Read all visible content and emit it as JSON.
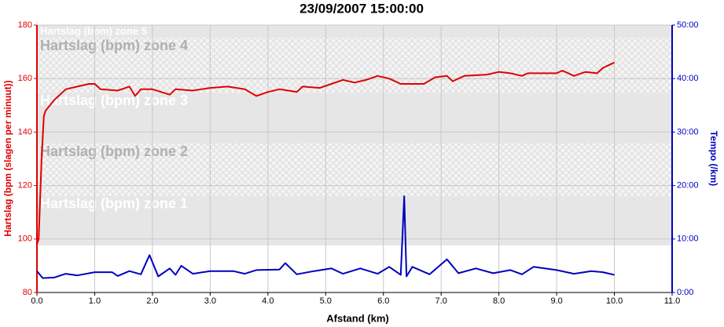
{
  "chart_data": {
    "type": "line",
    "title": "23/09/2007 15:00:00",
    "x_label": "Afstand (km)",
    "y_label": "Hartslag (bpm (slagen per minuut))",
    "y2_label": "Tempo (/km)",
    "xlim": [
      0,
      11
    ],
    "xticks": [
      {
        "value": 0,
        "label": "0.0"
      },
      {
        "value": 1,
        "label": "1.0"
      },
      {
        "value": 2,
        "label": "2.0"
      },
      {
        "value": 3,
        "label": "3.0"
      },
      {
        "value": 4,
        "label": "4.0"
      },
      {
        "value": 5,
        "label": "5.0"
      },
      {
        "value": 6,
        "label": "6.0"
      },
      {
        "value": 7,
        "label": "7.0"
      },
      {
        "value": 8,
        "label": "8.0"
      },
      {
        "value": 9,
        "label": "9.0"
      },
      {
        "value": 10,
        "label": "10.0"
      },
      {
        "value": 11,
        "label": "11.0"
      }
    ],
    "ylim": [
      80,
      180
    ],
    "yticks": [
      80,
      100,
      120,
      140,
      160,
      180
    ],
    "y2lim": [
      0,
      50
    ],
    "y2ticks": [
      {
        "value": 0,
        "label": "0:00"
      },
      {
        "value": 10,
        "label": "10:00"
      },
      {
        "value": 20,
        "label": "20:00"
      },
      {
        "value": 30,
        "label": "30:00"
      },
      {
        "value": 40,
        "label": "40:00"
      },
      {
        "value": 50,
        "label": "50:00"
      }
    ],
    "grid": true,
    "zones": [
      {
        "label": "Hartslag (bpm) zone 1",
        "range": [
          97.6,
          116.1
        ]
      },
      {
        "label": "Hartslag (bpm) zone 2",
        "range": [
          116.1,
          135.7
        ]
      },
      {
        "label": "Hartslag (bpm) zone 3",
        "range": [
          135.7,
          154.7
        ]
      },
      {
        "label": "Hartslag (bpm) zone 4",
        "range": [
          154.7,
          175.3
        ]
      },
      {
        "label": "Hartslag (bpm) zone 5",
        "range": [
          175.3,
          180
        ]
      }
    ],
    "series": [
      {
        "name": "Hartslag",
        "color": "#e00000",
        "x": [
          0,
          0.03,
          0.08,
          0.12,
          0.15,
          0.3,
          0.5,
          0.7,
          0.9,
          1.0,
          1.1,
          1.4,
          1.6,
          1.7,
          1.8,
          2.0,
          2.3,
          2.4,
          2.7,
          3.0,
          3.3,
          3.6,
          3.8,
          4.0,
          4.2,
          4.5,
          4.6,
          4.9,
          5.1,
          5.3,
          5.5,
          5.7,
          5.9,
          6.1,
          6.3,
          6.7,
          6.9,
          7.1,
          7.2,
          7.4,
          7.8,
          8.0,
          8.2,
          8.4,
          8.5,
          9.0,
          9.1,
          9.3,
          9.5,
          9.7,
          9.8,
          9.9,
          10.0
        ],
        "values": [
          98,
          100,
          130,
          146,
          148,
          152,
          156,
          157,
          158,
          158,
          156,
          155.5,
          157,
          153.5,
          156,
          156,
          154,
          156,
          155.5,
          156.5,
          157,
          156,
          153.5,
          155,
          156,
          155,
          157,
          156.5,
          158,
          159.5,
          158.5,
          159.5,
          161,
          160,
          158,
          158,
          160.5,
          161,
          159,
          161,
          161.5,
          162.5,
          162,
          161,
          162,
          162,
          163,
          161,
          162.5,
          162,
          164,
          165,
          166
        ]
      },
      {
        "name": "Tempo",
        "color": "#0000c0",
        "axis": "y2",
        "x": [
          0,
          0.1,
          0.3,
          0.5,
          0.7,
          1.0,
          1.3,
          1.4,
          1.6,
          1.8,
          1.95,
          2.1,
          2.3,
          2.4,
          2.5,
          2.7,
          3.0,
          3.4,
          3.6,
          3.8,
          4.2,
          4.3,
          4.5,
          4.8,
          5.1,
          5.3,
          5.6,
          5.9,
          6.1,
          6.3,
          6.36,
          6.4,
          6.5,
          6.8,
          7.1,
          7.3,
          7.6,
          7.9,
          8.2,
          8.4,
          8.6,
          9.0,
          9.3,
          9.6,
          9.8,
          10.0
        ],
        "values": [
          4.0,
          2.7,
          2.8,
          3.5,
          3.2,
          3.8,
          3.8,
          3.1,
          4.0,
          3.4,
          7.0,
          3.0,
          4.5,
          3.3,
          5.0,
          3.5,
          4.0,
          4.0,
          3.5,
          4.2,
          4.3,
          5.5,
          3.4,
          4.0,
          4.5,
          3.5,
          4.5,
          3.5,
          4.8,
          3.3,
          18.0,
          3.0,
          4.8,
          3.4,
          6.2,
          3.6,
          4.5,
          3.6,
          4.2,
          3.4,
          4.8,
          4.2,
          3.5,
          4.0,
          3.8,
          3.3
        ]
      }
    ]
  }
}
